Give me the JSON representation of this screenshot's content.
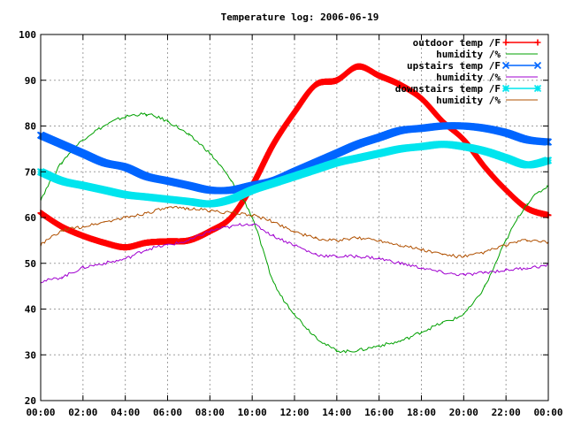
{
  "chart_data": {
    "type": "line",
    "title": "Temperature log: 2006-06-19",
    "xlabel": "",
    "ylabel": "",
    "xlim": [
      0,
      24
    ],
    "ylim": [
      20,
      100
    ],
    "x_ticks": [
      "00:00",
      "02:00",
      "04:00",
      "06:00",
      "08:00",
      "10:00",
      "12:00",
      "14:00",
      "16:00",
      "18:00",
      "20:00",
      "22:00",
      "00:00"
    ],
    "y_ticks": [
      "20",
      "30",
      "40",
      "50",
      "60",
      "70",
      "80",
      "90",
      "100"
    ],
    "grid": true,
    "legend_position": "top-right",
    "series": [
      {
        "name": "outdoor temp /F",
        "color": "#ff0000",
        "marker": "plus",
        "x": [
          0,
          1,
          2,
          3,
          4,
          5,
          6,
          7,
          8,
          9,
          10,
          11,
          12,
          13,
          14,
          15,
          16,
          17,
          18,
          19,
          20,
          21,
          22,
          23,
          24
        ],
        "values": [
          61,
          58,
          56,
          54.5,
          53.5,
          54.5,
          54.8,
          55,
          57,
          60,
          67,
          76,
          83,
          89,
          90,
          93,
          91,
          89,
          86,
          81,
          77,
          71,
          66,
          62,
          60.5
        ]
      },
      {
        "name": "humidity /%",
        "color": "#00a000",
        "marker": "none",
        "x": [
          0,
          1,
          2,
          3,
          4,
          5,
          6,
          7,
          8,
          9,
          10,
          11,
          12,
          13,
          14,
          15,
          16,
          17,
          18,
          19,
          20,
          21,
          22,
          23,
          24
        ],
        "values": [
          64,
          72,
          77,
          80,
          82,
          82.5,
          81,
          78,
          74,
          68,
          60,
          46,
          39,
          34,
          31,
          31,
          32,
          33,
          35,
          37,
          39,
          45,
          55,
          63,
          67
        ]
      },
      {
        "name": "upstairs temp /F",
        "color": "#0066ff",
        "marker": "x",
        "x": [
          0,
          1,
          2,
          3,
          4,
          5,
          6,
          7,
          8,
          9,
          10,
          11,
          12,
          13,
          14,
          15,
          16,
          17,
          18,
          19,
          20,
          21,
          22,
          23,
          24
        ],
        "values": [
          78,
          76,
          74,
          72,
          71,
          69,
          68,
          67,
          66,
          66,
          67,
          68,
          70,
          72,
          74,
          76,
          77.5,
          79,
          79.5,
          80,
          80,
          79.5,
          78.5,
          77,
          76.5
        ]
      },
      {
        "name": "humidity /%",
        "color": "#a000d0",
        "marker": "none",
        "x": [
          0,
          1,
          2,
          3,
          4,
          5,
          6,
          7,
          8,
          9,
          10,
          11,
          12,
          13,
          14,
          15,
          16,
          17,
          18,
          19,
          20,
          21,
          22,
          23,
          24
        ],
        "values": [
          46,
          47,
          49,
          50,
          51,
          53,
          54,
          55,
          57,
          58,
          58.5,
          56,
          54,
          52,
          51.5,
          51.5,
          51,
          50,
          49,
          48,
          47.5,
          48,
          48.5,
          49,
          49.5
        ]
      },
      {
        "name": "downstairs temp /F",
        "color": "#00e5ee",
        "marker": "star",
        "x": [
          0,
          1,
          2,
          3,
          4,
          5,
          6,
          7,
          8,
          9,
          10,
          11,
          12,
          13,
          14,
          15,
          16,
          17,
          18,
          19,
          20,
          21,
          22,
          23,
          24
        ],
        "values": [
          70,
          68,
          67,
          66,
          65,
          64.5,
          64,
          63.5,
          63,
          64,
          66,
          67.5,
          69,
          70.5,
          72,
          73,
          74,
          75,
          75.5,
          76,
          75.5,
          74.5,
          73,
          71.5,
          72.5
        ]
      },
      {
        "name": "humidity /%",
        "color": "#b05000",
        "marker": "none",
        "x": [
          0,
          1,
          2,
          3,
          4,
          5,
          6,
          7,
          8,
          9,
          10,
          11,
          12,
          13,
          14,
          15,
          16,
          17,
          18,
          19,
          20,
          21,
          22,
          23,
          24
        ],
        "values": [
          54,
          57,
          58,
          59,
          60,
          61,
          62,
          62,
          61.5,
          61,
          60.5,
          59,
          57,
          55.5,
          55,
          55.5,
          55,
          54,
          53,
          52,
          51.5,
          52.5,
          54,
          55,
          54.5
        ]
      }
    ]
  }
}
